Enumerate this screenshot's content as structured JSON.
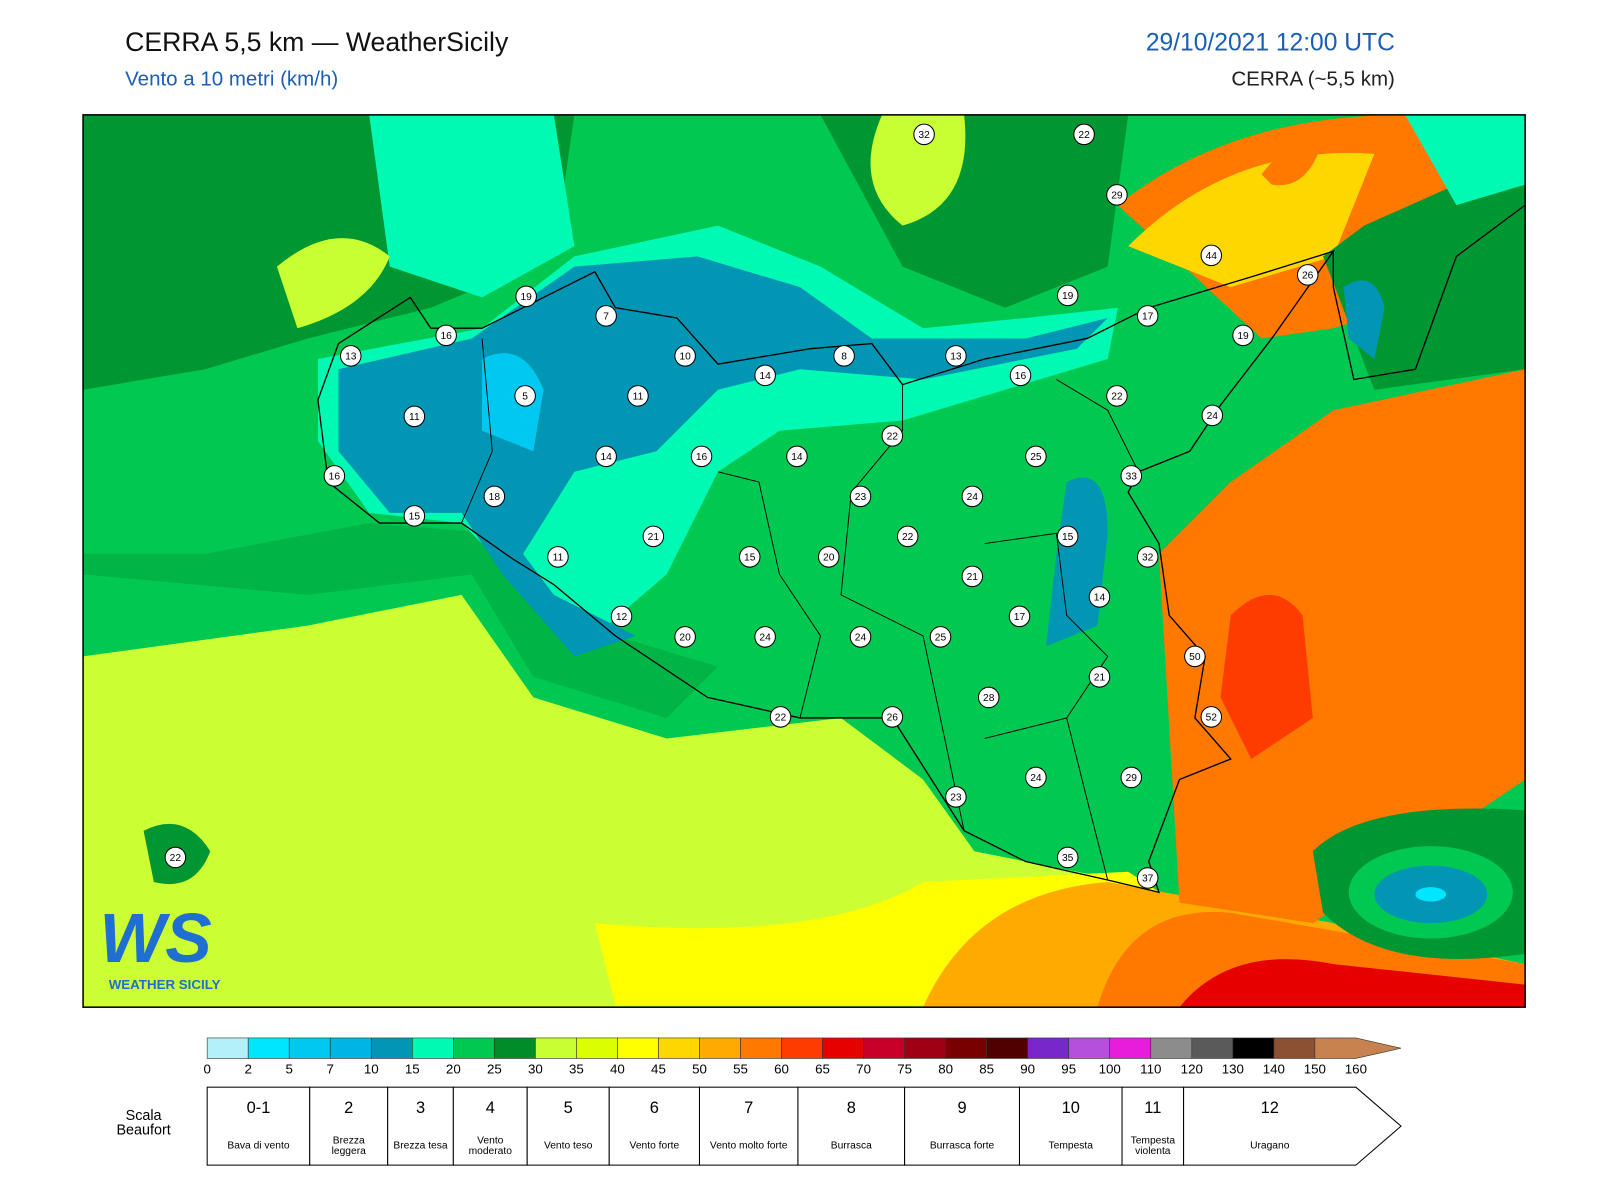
{
  "header": {
    "title": "CERRA 5,5 km — WeatherSicily",
    "subtitle": "Vento a 10 metri (km/h)",
    "datetime": "29/10/2021 12:00 UTC",
    "model": "CERRA (~5,5 km)"
  },
  "map": {
    "station_values": [
      32,
      22,
      29,
      44,
      26,
      19,
      7,
      19,
      17,
      19,
      16,
      13,
      10,
      8,
      13,
      14,
      16,
      5,
      11,
      22,
      11,
      24,
      22,
      14,
      16,
      14,
      25,
      16,
      33,
      18,
      23,
      24,
      15,
      21,
      22,
      15,
      11,
      15,
      20,
      32,
      21,
      14,
      17,
      12,
      20,
      24,
      24,
      25,
      50,
      21,
      28,
      22,
      26,
      52,
      24,
      29,
      23,
      35,
      22,
      37
    ]
  },
  "logo": {
    "mark": "WS",
    "name": "WEATHER SICILY"
  },
  "colorbar": {
    "ticks": [
      0,
      2,
      5,
      7,
      10,
      15,
      20,
      25,
      30,
      35,
      40,
      45,
      50,
      55,
      60,
      65,
      70,
      75,
      80,
      85,
      90,
      95,
      100,
      110,
      120,
      130,
      140,
      150,
      160
    ],
    "colors": [
      "#b4f0fa",
      "#00e6ff",
      "#00c8f0",
      "#00b4e6",
      "#0096b4",
      "#00fab4",
      "#00c850",
      "#008c28",
      "#c8ff32",
      "#dcff00",
      "#ffff00",
      "#ffd700",
      "#ffaa00",
      "#ff7800",
      "#ff3c00",
      "#e60000",
      "#c80028",
      "#a00014",
      "#780000",
      "#500000",
      "#7828c8",
      "#b450dc",
      "#e61edc",
      "#8c8c8c",
      "#5a5a5a",
      "#000000",
      "#8c5032",
      "#c88250"
    ]
  },
  "beaufort": {
    "label": "Scala Beaufort",
    "levels": [
      {
        "force": "0-1",
        "description": "Bava di vento"
      },
      {
        "force": 2,
        "description": "Brezza leggera"
      },
      {
        "force": 3,
        "description": "Brezza tesa"
      },
      {
        "force": 4,
        "description": "Vento moderato"
      },
      {
        "force": 5,
        "description": "Vento teso"
      },
      {
        "force": 6,
        "description": "Vento forte"
      },
      {
        "force": 7,
        "description": "Vento molto forte"
      },
      {
        "force": 8,
        "description": "Burrasca"
      },
      {
        "force": 9,
        "description": "Burrasca forte"
      },
      {
        "force": 10,
        "description": "Tempesta"
      },
      {
        "force": 11,
        "description": "Tempesta violenta"
      },
      {
        "force": 12,
        "description": "Uragano"
      }
    ]
  }
}
